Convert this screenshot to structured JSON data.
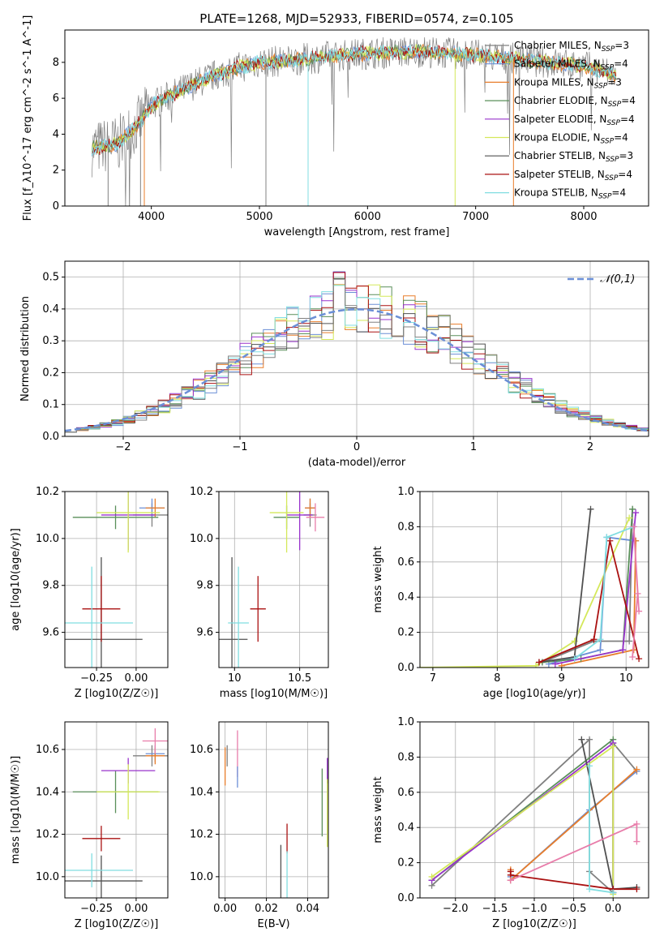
{
  "title": "PLATE=1268, MJD=52933, FIBERID=0574, z=0.105",
  "colors": {
    "Chabrier MILES": "#808080",
    "Salpeter MILES": "#6b8fd6",
    "Kroupa MILES": "#e87d2a",
    "Chabrier ELODIE": "#5a8f5a",
    "Salpeter ELODIE": "#9933cc",
    "Kroupa ELODIE": "#d4e85a",
    "Chabrier STELIB": "#505050",
    "Salpeter STELIB": "#aa1111",
    "Kroupa STELIB": "#80dde0",
    "extra": "#e87daa"
  },
  "chart_data": [
    {
      "id": "spectrum",
      "type": "line",
      "xlabel": "wavelength [Angstrom, rest frame]",
      "ylabel": "Flux [f_λ10^-17 erg cm^-2 s^-1 A^-1]",
      "xlim": [
        3200,
        8600
      ],
      "ylim": [
        0,
        9.8
      ],
      "xticks": [
        4000,
        5000,
        6000,
        7000,
        8000
      ],
      "yticks": [
        0,
        2,
        4,
        6,
        8
      ],
      "legend": [
        {
          "name": "Chabrier MILES",
          "nssp": "3"
        },
        {
          "name": "Salpeter MILES",
          "nssp": "4"
        },
        {
          "name": "Kroupa MILES",
          "nssp": "3"
        },
        {
          "name": "Chabrier ELODIE",
          "nssp": "4"
        },
        {
          "name": "Salpeter ELODIE",
          "nssp": "4"
        },
        {
          "name": "Kroupa ELODIE",
          "nssp": "4"
        },
        {
          "name": "Chabrier STELIB",
          "nssp": "3"
        },
        {
          "name": "Salpeter STELIB",
          "nssp": "4"
        },
        {
          "name": "Kroupa STELIB",
          "nssp": "4"
        }
      ],
      "continuum": {
        "x": [
          3450,
          3700,
          3900,
          4000,
          4200,
          4400,
          4600,
          4800,
          5000,
          5300,
          5600,
          6000,
          6500,
          7000,
          7500,
          8000,
          8300
        ],
        "y": [
          3.2,
          3.5,
          4.7,
          5.6,
          6.2,
          6.8,
          7.3,
          7.7,
          8.0,
          8.1,
          8.3,
          8.5,
          8.6,
          8.4,
          8.1,
          7.8,
          7.3
        ]
      }
    },
    {
      "id": "residual-hist",
      "type": "line",
      "xlabel": "(data-model)/error",
      "ylabel": "Normed distribution",
      "xlim": [
        -2.5,
        2.5
      ],
      "ylim": [
        0,
        0.55
      ],
      "xticks": [
        -2,
        -1,
        0,
        1,
        2
      ],
      "xticklabels": [
        "−2",
        "−1",
        "0",
        "1",
        "2"
      ],
      "yticks": [
        0.0,
        0.1,
        0.2,
        0.3,
        0.4,
        0.5
      ],
      "legend": "𝒩(0,1)",
      "normal_curve": true
    },
    {
      "id": "age-vs-Z",
      "type": "scatter",
      "xlabel": "Z [log10(Z/Z☉)]",
      "ylabel": "age [log10(age/yr)]",
      "xlim": [
        -0.45,
        0.2
      ],
      "ylim": [
        9.45,
        10.2
      ],
      "xticks": [
        -0.25,
        0.0
      ],
      "xticklabels": [
        "−0.25",
        "0.00"
      ],
      "yticks": [
        9.6,
        9.8,
        10.0,
        10.2
      ],
      "points": [
        {
          "c": "Chabrier MILES",
          "x": 0.1,
          "y": 10.1,
          "xe": 0.12,
          "ye": 0.05
        },
        {
          "c": "Salpeter MILES",
          "x": 0.1,
          "y": 10.13,
          "xe": 0.08,
          "ye": 0.04
        },
        {
          "c": "Kroupa MILES",
          "x": 0.12,
          "y": 10.13,
          "xe": 0.06,
          "ye": 0.04
        },
        {
          "c": "Chabrier ELODIE",
          "x": -0.13,
          "y": 10.09,
          "xe": 0.27,
          "ye": 0.05
        },
        {
          "c": "Salpeter ELODIE",
          "x": -0.05,
          "y": 10.1,
          "xe": 0.17,
          "ye": 0.15
        },
        {
          "c": "Kroupa ELODIE",
          "x": -0.05,
          "y": 10.11,
          "xe": 0.2,
          "ye": 0.17
        },
        {
          "c": "Chabrier STELIB",
          "x": -0.22,
          "y": 9.57,
          "xe": 0.26,
          "ye": 0.35
        },
        {
          "c": "Salpeter STELIB",
          "x": -0.22,
          "y": 9.7,
          "xe": 0.12,
          "ye": 0.14
        },
        {
          "c": "Kroupa STELIB",
          "x": -0.28,
          "y": 9.64,
          "xe": 0.26,
          "ye": 0.24
        }
      ]
    },
    {
      "id": "age-vs-mass",
      "type": "scatter",
      "xlabel": "mass [log10(M/M☉)]",
      "xlim": [
        9.88,
        10.72
      ],
      "ylim": [
        9.45,
        10.2
      ],
      "xticks": [
        10.0,
        10.5
      ],
      "yticks": [
        9.6,
        9.8,
        10.0,
        10.2
      ],
      "points": [
        {
          "c": "Chabrier MILES",
          "x": 10.58,
          "y": 10.1,
          "xe": 0.05,
          "ye": 0.05
        },
        {
          "c": "Salpeter MILES",
          "x": 10.58,
          "y": 10.13,
          "xe": 0.04,
          "ye": 0.04
        },
        {
          "c": "Kroupa MILES",
          "x": 10.58,
          "y": 10.13,
          "xe": 0.04,
          "ye": 0.04
        },
        {
          "c": "Chabrier ELODIE",
          "x": 10.4,
          "y": 10.09,
          "xe": 0.1,
          "ye": 0.05
        },
        {
          "c": "Salpeter ELODIE",
          "x": 10.5,
          "y": 10.1,
          "xe": 0.1,
          "ye": 0.15
        },
        {
          "c": "Kroupa ELODIE",
          "x": 10.4,
          "y": 10.11,
          "xe": 0.13,
          "ye": 0.17
        },
        {
          "c": "Chabrier STELIB",
          "x": 9.98,
          "y": 9.57,
          "xe": 0.12,
          "ye": 0.35
        },
        {
          "c": "Salpeter STELIB",
          "x": 10.18,
          "y": 9.7,
          "xe": 0.06,
          "ye": 0.14
        },
        {
          "c": "Kroupa STELIB",
          "x": 10.03,
          "y": 9.64,
          "xe": 0.08,
          "ye": 0.24
        },
        {
          "c": "extra",
          "x": 10.62,
          "y": 10.09,
          "xe": 0.07,
          "ye": 0.06
        }
      ]
    },
    {
      "id": "massweight-vs-age",
      "type": "line",
      "xlabel": "age [log10(age/yr)]",
      "ylabel": "mass weight",
      "xlim": [
        6.8,
        10.35
      ],
      "ylim": [
        0,
        1.0
      ],
      "xticks": [
        7,
        8,
        9,
        10
      ],
      "yticks": [
        0.0,
        0.2,
        0.4,
        0.6,
        0.8,
        1.0
      ],
      "series": [
        {
          "c": "Chabrier MILES",
          "x": [
            8.7,
            9.5,
            10.05,
            10.1
          ],
          "y": [
            0.03,
            0.15,
            0.15,
            0.9
          ]
        },
        {
          "c": "Salpeter MILES",
          "x": [
            8.8,
            9.6,
            9.7,
            10.15
          ],
          "y": [
            0.02,
            0.1,
            0.74,
            0.72
          ]
        },
        {
          "c": "Kroupa MILES",
          "x": [
            9.0,
            10.12,
            10.15
          ],
          "y": [
            0.01,
            0.1,
            0.72
          ]
        },
        {
          "c": "Chabrier ELODIE",
          "x": [
            8.7,
            9.3,
            9.95,
            10.1
          ],
          "y": [
            0.03,
            0.05,
            0.1,
            0.9
          ]
        },
        {
          "c": "Salpeter ELODIE",
          "x": [
            8.9,
            9.95,
            10.15
          ],
          "y": [
            0.02,
            0.1,
            0.88
          ]
        },
        {
          "c": "Kroupa ELODIE",
          "x": [
            6.8,
            8.6,
            9.2,
            10.05
          ],
          "y": [
            0.0,
            0.01,
            0.15,
            0.85
          ]
        },
        {
          "c": "Chabrier STELIB",
          "x": [
            8.65,
            9.2,
            9.45
          ],
          "y": [
            0.03,
            0.06,
            0.9
          ]
        },
        {
          "c": "Salpeter STELIB",
          "x": [
            8.65,
            9.5,
            9.75,
            10.2
          ],
          "y": [
            0.03,
            0.16,
            0.72,
            0.05
          ]
        },
        {
          "c": "Kroupa STELIB",
          "x": [
            9.2,
            9.6,
            9.7,
            10.12
          ],
          "y": [
            0.05,
            0.16,
            0.74,
            0.8
          ]
        },
        {
          "c": "extra",
          "x": [
            10.1,
            10.18,
            10.12,
            10.2
          ],
          "y": [
            0.06,
            0.42,
            0.8,
            0.32
          ]
        }
      ]
    },
    {
      "id": "mass-vs-Z",
      "type": "scatter",
      "xlabel": "Z [log10(Z/Z☉)]",
      "ylabel": "mass [log10(M/M☉)]",
      "xlim": [
        -0.45,
        0.2
      ],
      "ylim": [
        9.9,
        10.73
      ],
      "xticks": [
        -0.25,
        0.0
      ],
      "xticklabels": [
        "−0.25",
        "0.00"
      ],
      "yticks": [
        10.0,
        10.2,
        10.4,
        10.6
      ],
      "points": [
        {
          "c": "Chabrier MILES",
          "x": 0.1,
          "y": 10.57,
          "xe": 0.12,
          "ye": 0.05
        },
        {
          "c": "Salpeter MILES",
          "x": 0.12,
          "y": 10.58,
          "xe": 0.06,
          "ye": 0.04
        },
        {
          "c": "Kroupa MILES",
          "x": 0.12,
          "y": 10.57,
          "xe": 0.06,
          "ye": 0.04
        },
        {
          "c": "Chabrier ELODIE",
          "x": -0.13,
          "y": 10.4,
          "xe": 0.27,
          "ye": 0.1
        },
        {
          "c": "Salpeter ELODIE",
          "x": -0.05,
          "y": 10.5,
          "xe": 0.17,
          "ye": 0.06
        },
        {
          "c": "Kroupa ELODIE",
          "x": -0.05,
          "y": 10.4,
          "xe": 0.2,
          "ye": 0.13
        },
        {
          "c": "Chabrier STELIB",
          "x": -0.22,
          "y": 9.98,
          "xe": 0.26,
          "ye": 0.12
        },
        {
          "c": "Salpeter STELIB",
          "x": -0.22,
          "y": 10.18,
          "xe": 0.12,
          "ye": 0.06
        },
        {
          "c": "Kroupa STELIB",
          "x": -0.28,
          "y": 10.03,
          "xe": 0.26,
          "ye": 0.08
        },
        {
          "c": "extra",
          "x": 0.12,
          "y": 10.64,
          "xe": 0.08,
          "ye": 0.06
        }
      ]
    },
    {
      "id": "mass-vs-EBV",
      "type": "scatter",
      "xlabel": "E(B-V)",
      "xlim": [
        -0.003,
        0.05
      ],
      "ylim": [
        9.9,
        10.73
      ],
      "xticks": [
        0.0,
        0.02,
        0.04
      ],
      "xticklabels": [
        "0.00",
        "0.02",
        "0.04"
      ],
      "yticks": [
        10.0,
        10.2,
        10.4,
        10.6
      ],
      "points": [
        {
          "c": "Chabrier MILES",
          "x": 0.001,
          "y": 10.57,
          "xe": 0.0,
          "ye": 0.05
        },
        {
          "c": "Kroupa MILES",
          "x": 0.0,
          "y": 10.52,
          "xe": 0.0,
          "ye": 0.09
        },
        {
          "c": "Chabrier ELODIE",
          "x": 0.047,
          "y": 10.35,
          "xe": 0.0,
          "ye": 0.16
        },
        {
          "c": "Salpeter ELODIE",
          "x": 0.0495,
          "y": 10.5,
          "xe": 0.0,
          "ye": 0.06
        },
        {
          "c": "Kroupa ELODIE",
          "x": 0.0495,
          "y": 10.3,
          "xe": 0.0,
          "ye": 0.16
        },
        {
          "c": "Chabrier STELIB",
          "x": 0.027,
          "y": 10.02,
          "xe": 0.0,
          "ye": 0.13
        },
        {
          "c": "Salpeter STELIB",
          "x": 0.03,
          "y": 10.18,
          "xe": 0.0,
          "ye": 0.07
        },
        {
          "c": "Kroupa STELIB",
          "x": 0.03,
          "y": 10.01,
          "xe": 0.0,
          "ye": 0.11
        },
        {
          "c": "extra",
          "x": 0.006,
          "y": 10.58,
          "xe": 0.0,
          "ye": 0.11
        },
        {
          "c": "Salpeter MILES",
          "x": 0.006,
          "y": 10.47,
          "xe": 0.0,
          "ye": 0.05
        }
      ]
    },
    {
      "id": "massweight-vs-Z",
      "type": "line",
      "xlabel": "Z [log10(Z/Z☉)]",
      "ylabel": "mass weight",
      "xlim": [
        -2.45,
        0.45
      ],
      "ylim": [
        0,
        1.0
      ],
      "xticks": [
        -2.0,
        -1.5,
        -1.0,
        -0.5,
        0.0
      ],
      "xticklabels": [
        "−2.0",
        "−1.5",
        "−1.0",
        "−0.5",
        "0.0"
      ],
      "yticks": [
        0.0,
        0.2,
        0.4,
        0.6,
        0.8,
        1.0
      ],
      "series": [
        {
          "c": "Chabrier MILES",
          "x": [
            -2.3,
            -0.3,
            -0.3,
            0.0,
            0.0,
            0.3
          ],
          "y": [
            0.07,
            0.9,
            0.15,
            0.03,
            0.88,
            0.72
          ]
        },
        {
          "c": "Salpeter MILES",
          "x": [
            -1.3,
            -1.3,
            -0.3,
            0.3
          ],
          "y": [
            0.12,
            0.1,
            0.5,
            0.72
          ]
        },
        {
          "c": "Kroupa MILES",
          "x": [
            -1.3,
            -1.3,
            0.3
          ],
          "y": [
            0.16,
            0.1,
            0.73
          ]
        },
        {
          "c": "Chabrier ELODIE",
          "x": [
            -2.3,
            0.0,
            0.0
          ],
          "y": [
            0.1,
            0.9,
            0.03
          ]
        },
        {
          "c": "Salpeter ELODIE",
          "x": [
            -2.3,
            0.0,
            0.0
          ],
          "y": [
            0.1,
            0.88,
            0.03
          ]
        },
        {
          "c": "Kroupa ELODIE",
          "x": [
            -2.3,
            0.0,
            0.0
          ],
          "y": [
            0.12,
            0.86,
            0.02
          ]
        },
        {
          "c": "Chabrier STELIB",
          "x": [
            -0.4,
            0.0,
            0.3
          ],
          "y": [
            0.9,
            0.05,
            0.06
          ]
        },
        {
          "c": "Salpeter STELIB",
          "x": [
            -1.3,
            -1.3,
            0.0,
            0.3
          ],
          "y": [
            0.15,
            0.13,
            0.05,
            0.05
          ]
        },
        {
          "c": "Kroupa STELIB",
          "x": [
            -0.3,
            -0.3,
            0.0
          ],
          "y": [
            0.75,
            0.05,
            0.03
          ]
        },
        {
          "c": "extra",
          "x": [
            -1.3,
            0.3,
            0.3
          ],
          "y": [
            0.1,
            0.42,
            0.32
          ]
        }
      ]
    }
  ]
}
